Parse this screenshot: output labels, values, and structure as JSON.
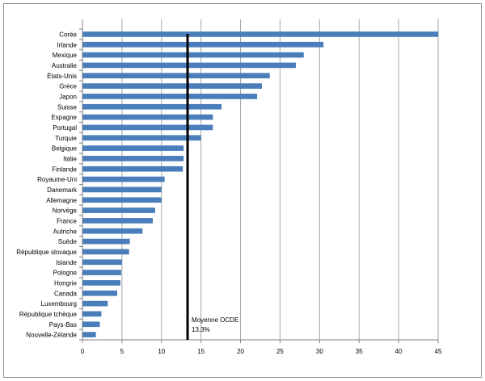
{
  "chart_data": {
    "type": "bar",
    "orientation": "horizontal",
    "categories": [
      "Corée",
      "Irlande",
      "Mexique",
      "Australie",
      "États-Unis",
      "Grèce",
      "Japon",
      "Suisse",
      "Espagne",
      "Portugal",
      "Turquie",
      "Belgique",
      "Italie",
      "Finlande",
      "Royaume-Uni",
      "Danemark",
      "Allemagne",
      "Norvège",
      "France",
      "Autriche",
      "Suède",
      "République slovaque",
      "Islande",
      "Pologne",
      "Hongrie",
      "Canada",
      "Luxembourg",
      "République tchèque",
      "Pays-Bas",
      "Nouvelle-Zélande"
    ],
    "values": [
      45.0,
      30.5,
      28.0,
      27.0,
      23.7,
      22.7,
      22.1,
      17.6,
      16.5,
      16.5,
      15.0,
      12.8,
      12.8,
      12.7,
      10.4,
      10.0,
      10.0,
      9.2,
      8.9,
      7.6,
      6.0,
      5.9,
      5.0,
      4.9,
      4.8,
      4.4,
      3.2,
      2.4,
      2.2,
      1.7
    ],
    "xlim": [
      0,
      45
    ],
    "xticks": [
      "0",
      "5",
      "10",
      "15",
      "20",
      "25",
      "30",
      "35",
      "40",
      "45"
    ],
    "grid": true,
    "bar_color": "#4a7ebb",
    "reference_line": {
      "value": 13.3,
      "label_line1": "Moyenne OCDE",
      "label_line2": "13.3%",
      "color": "#000000"
    },
    "title": "",
    "xlabel": "",
    "ylabel": ""
  }
}
